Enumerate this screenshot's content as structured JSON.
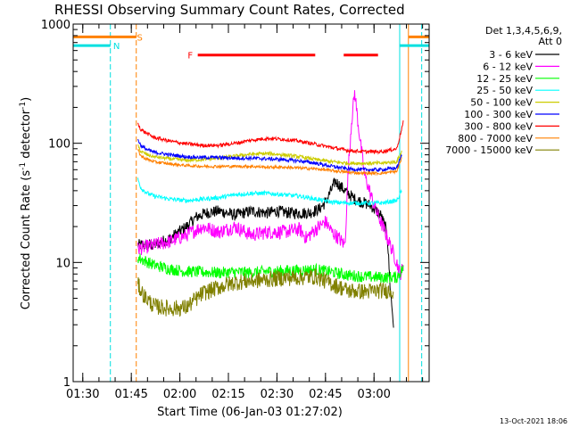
{
  "chart_data": {
    "type": "line",
    "title": "RHESSI Observing Summary Count Rates, Corrected",
    "xlabel": "Start Time (06-Jan-03 01:27:02)",
    "ylabel_main": "Corrected Count Rate (s",
    "ylabel_sup1": "-1",
    "ylabel_mid": " detector",
    "ylabel_sup2": "-1",
    "ylabel_end": ")",
    "y_scale": "log",
    "ylim": [
      1,
      1000
    ],
    "xlim_minutes": [
      0,
      110
    ],
    "x_ticks": [
      {
        "label": "01:30",
        "minute": 2.97
      },
      {
        "label": "01:45",
        "minute": 17.97
      },
      {
        "label": "02:00",
        "minute": 32.97
      },
      {
        "label": "02:15",
        "minute": 47.97
      },
      {
        "label": "02:30",
        "minute": 62.97
      },
      {
        "label": "02:45",
        "minute": 77.97
      },
      {
        "label": "03:00",
        "minute": 92.97
      }
    ],
    "y_ticks": [
      {
        "label": "1",
        "value": 1
      },
      {
        "label": "10",
        "value": 10
      },
      {
        "label": "100",
        "value": 100
      },
      {
        "label": "1000",
        "value": 1000
      }
    ],
    "legend_header": [
      "Det 1,3,4,5,6,9,",
      "Att 0"
    ],
    "timestamp": "13-Oct-2021 18:06",
    "flags": [
      {
        "letter": "S",
        "color": "#ff8000",
        "minute_start": 0,
        "minute_end": 19.5,
        "value": 780,
        "letter_minute": 20.6
      },
      {
        "letter": "N",
        "color": "#00e0e0",
        "minute_start": 0,
        "minute_end": 11.5,
        "value": 660,
        "letter_minute": 13.4
      },
      {
        "letter": "F",
        "color": "#ff0000",
        "minute_start": 38.5,
        "minute_end": 74.8,
        "value": 550,
        "letter_minute": 36.2
      },
      {
        "letter": "",
        "color": "#ff0000",
        "minute_start": 83.6,
        "minute_end": 94.2,
        "value": 550,
        "letter_minute": 0
      },
      {
        "letter": "",
        "color": "#00e0e0",
        "minute_start": 100.9,
        "minute_end": 110,
        "value": 660,
        "letter_minute": 0
      },
      {
        "letter": "",
        "color": "#ff8000",
        "minute_start": 103.6,
        "minute_end": 110,
        "value": 780,
        "letter_minute": 0
      }
    ],
    "vlines": [
      {
        "minute": 11.5,
        "color": "#00e0e0",
        "dashed": true
      },
      {
        "minute": 19.5,
        "color": "#ff8000",
        "dashed": true
      },
      {
        "minute": 100.9,
        "color": "#00e0e0",
        "dashed": false
      },
      {
        "minute": 103.6,
        "color": "#ff8000",
        "dashed": false
      },
      {
        "minute": 107.7,
        "color": "#00e0e0",
        "dashed": true
      }
    ],
    "series": [
      {
        "name": "3 - 6 keV",
        "color": "#000000",
        "x": [
          20,
          25,
          30,
          35,
          38,
          41,
          45,
          50,
          55,
          60,
          63,
          67,
          70,
          73,
          76,
          78,
          81,
          84,
          87,
          92,
          95,
          97,
          98,
          99
        ],
        "y": [
          14,
          14,
          16,
          20,
          24,
          26,
          27,
          25,
          27,
          26,
          27,
          26,
          26,
          26,
          28,
          32,
          48,
          40,
          34,
          30,
          25,
          18,
          6,
          3
        ]
      },
      {
        "name": "6 - 12 keV",
        "color": "#ff00ff",
        "x": [
          20,
          25,
          30,
          35,
          40,
          45,
          50,
          55,
          60,
          65,
          70,
          72,
          75,
          78,
          80,
          82,
          84,
          85,
          86,
          87,
          88,
          90,
          93,
          95,
          98,
          100,
          101,
          102
        ],
        "y": [
          13,
          14,
          15,
          17,
          20,
          18,
          20,
          17,
          18,
          18,
          19,
          16,
          19,
          22,
          18,
          16,
          14,
          60,
          150,
          270,
          150,
          55,
          30,
          22,
          14,
          10,
          8,
          9
        ]
      },
      {
        "name": "12 - 25 keV",
        "color": "#00ff00",
        "x": [
          20,
          25,
          30,
          35,
          40,
          45,
          50,
          55,
          60,
          65,
          70,
          75,
          80,
          85,
          90,
          95,
          100,
          102
        ],
        "y": [
          11,
          9.5,
          8.8,
          8.4,
          8.3,
          8.2,
          8.3,
          8.2,
          8.4,
          8.5,
          8.6,
          8.7,
          8.3,
          7.8,
          7.6,
          7.5,
          7.5,
          9
        ]
      },
      {
        "name": "25 - 50 keV",
        "color": "#00ffff",
        "x": [
          20,
          21,
          23,
          25,
          30,
          35,
          40,
          45,
          50,
          55,
          60,
          65,
          70,
          75,
          80,
          85,
          90,
          95,
          100,
          101.5
        ],
        "y": [
          50,
          42,
          38,
          36,
          34,
          33,
          34,
          35,
          37,
          38,
          38,
          37,
          36,
          34,
          32,
          31.5,
          31.5,
          31.5,
          33,
          40
        ]
      },
      {
        "name": "50 - 100 keV",
        "color": "#cccc00",
        "x": [
          20,
          21,
          23,
          25,
          30,
          35,
          40,
          45,
          50,
          55,
          60,
          65,
          70,
          75,
          80,
          85,
          90,
          95,
          100,
          101.5
        ],
        "y": [
          95,
          85,
          80,
          77,
          74,
          72,
          73,
          75,
          78,
          81,
          82,
          80,
          77,
          73,
          70,
          68,
          68,
          68,
          70,
          85
        ]
      },
      {
        "name": "100 - 300 keV",
        "color": "#0000ff",
        "x": [
          20,
          21,
          23,
          25,
          30,
          35,
          40,
          45,
          50,
          55,
          60,
          65,
          70,
          75,
          80,
          85,
          90,
          95,
          100,
          101.5
        ],
        "y": [
          108,
          95,
          88,
          84,
          80,
          77,
          76,
          76,
          75,
          75,
          74,
          73,
          71,
          68,
          64,
          61,
          60,
          60,
          62,
          80
        ]
      },
      {
        "name": "300 - 800 keV",
        "color": "#ff0000",
        "x": [
          20,
          21,
          23,
          25,
          30,
          35,
          40,
          45,
          50,
          55,
          60,
          65,
          70,
          75,
          80,
          85,
          90,
          95,
          100,
          102
        ],
        "y": [
          145,
          130,
          120,
          112,
          104,
          99,
          96,
          96,
          100,
          106,
          110,
          108,
          104,
          98,
          92,
          87,
          85,
          85,
          90,
          150
        ]
      },
      {
        "name": "800 - 7000 keV",
        "color": "#ff8000",
        "x": [
          20,
          21,
          23,
          25,
          30,
          35,
          40,
          45,
          50,
          55,
          60,
          65,
          70,
          75,
          80,
          85,
          90,
          95,
          100,
          101.5
        ],
        "y": [
          88,
          78,
          73,
          70,
          67,
          65,
          64,
          64,
          64,
          64,
          63,
          63,
          62,
          61,
          59,
          57,
          56,
          56,
          58,
          75
        ]
      },
      {
        "name": "7000 - 15000 keV",
        "color": "#808000",
        "x": [
          20,
          22,
          25,
          30,
          35,
          40,
          45,
          50,
          55,
          60,
          65,
          70,
          75,
          80,
          85,
          90,
          95,
          99
        ],
        "y": [
          6.5,
          5.2,
          4.3,
          4.1,
          4.2,
          5.5,
          6.2,
          6.8,
          7,
          7.2,
          7.4,
          7.5,
          7.6,
          6.6,
          5.8,
          5.7,
          5.8,
          5.8
        ]
      }
    ]
  }
}
